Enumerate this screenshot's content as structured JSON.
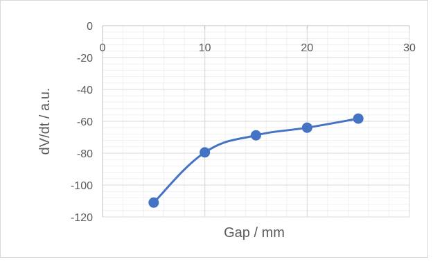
{
  "chart_data": {
    "type": "scatter",
    "xlabel": "Gap / mm",
    "ylabel": "dV/dt / a.u.",
    "xlim": [
      0,
      30
    ],
    "ylim": [
      -120,
      0
    ],
    "x_ticks": [
      0,
      10,
      20,
      30
    ],
    "y_ticks": [
      0,
      -20,
      -40,
      -60,
      -80,
      -100,
      -120
    ],
    "x_tick_labels": [
      "0",
      "10",
      "20",
      "30"
    ],
    "y_tick_labels": [
      "0",
      "-20",
      "-40",
      "-60",
      "-80",
      "-100",
      "-120"
    ],
    "grid": "major and minor",
    "smooth_line": true,
    "series": [
      {
        "x": [
          5,
          10,
          15,
          20,
          25
        ],
        "y": [
          -111,
          -79.5,
          -68.8,
          -64,
          -58.3
        ],
        "color": "#4472c4"
      }
    ]
  }
}
